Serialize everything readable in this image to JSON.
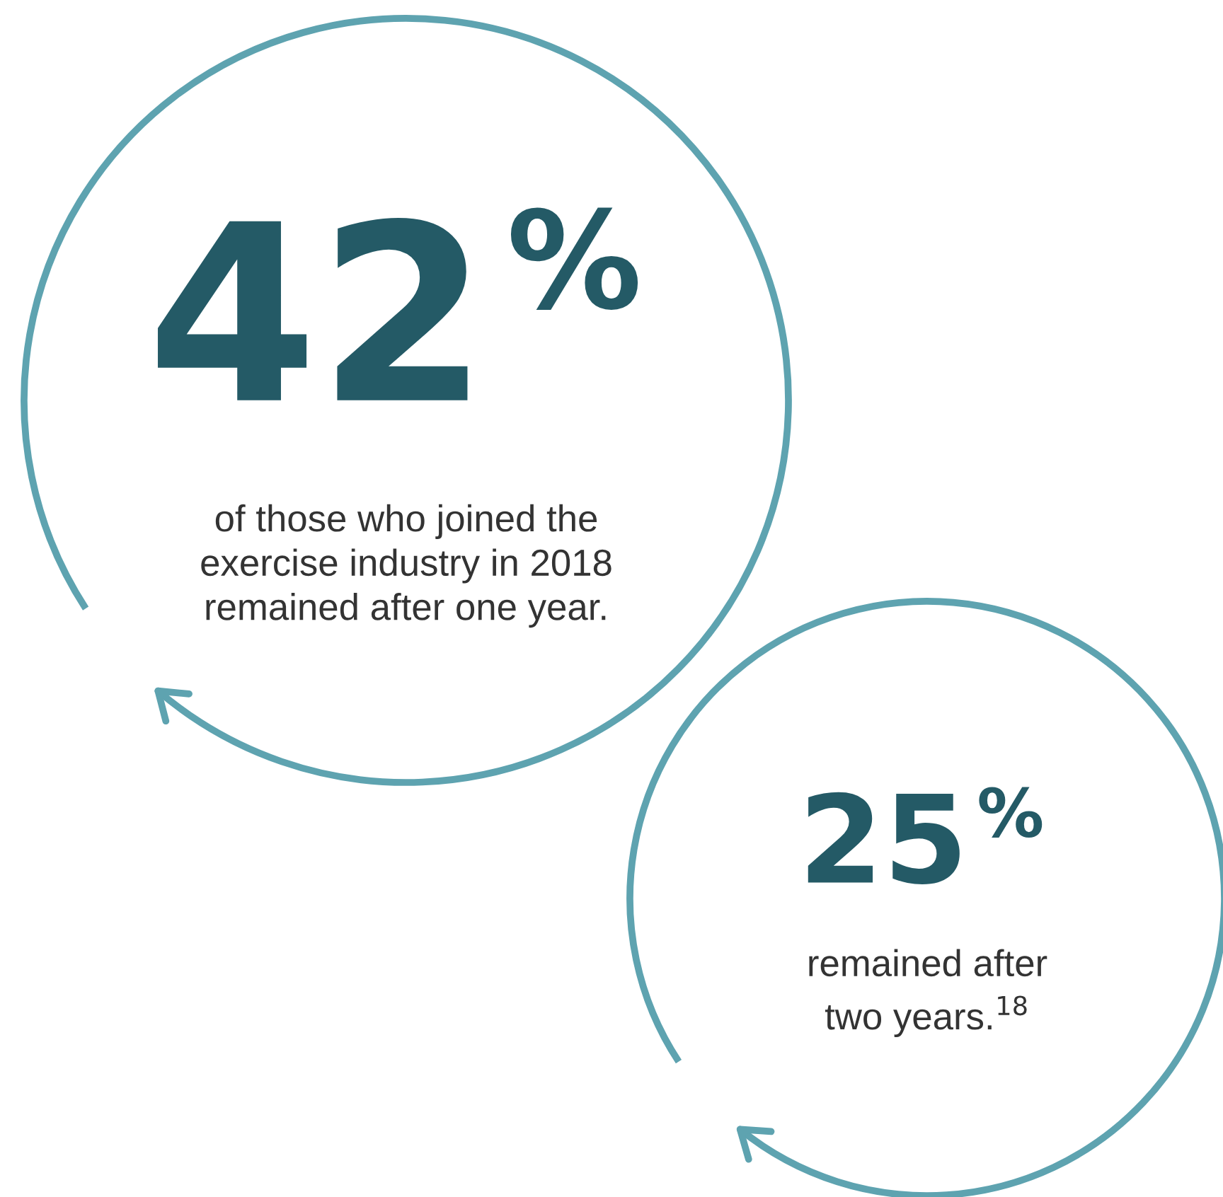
{
  "chart_data": {
    "type": "other",
    "categories": [
      "of those who joined the\nexercise industry in 2018\nremained after one year.",
      "remained after\ntwo years.$^{18}$"
    ],
    "values": [
      42,
      25
    ],
    "value_labels": [
      "42%",
      "25%"
    ],
    "color": "#245a66",
    "colors": [
      "#5ea3b0",
      "#5ea3b0"
    ]
  }
}
